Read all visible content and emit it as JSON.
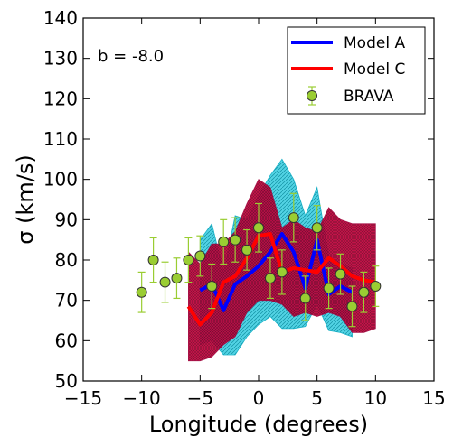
{
  "chart_data": {
    "type": "line",
    "xlabel": "Longitude (degrees)",
    "ylabel": "σ (km/s)",
    "annotation": "b = -8.0",
    "xlim": [
      -15,
      15
    ],
    "ylim": [
      50,
      140
    ],
    "xticks": [
      "−15",
      "−10",
      "−5",
      "0",
      "5",
      "10",
      "15"
    ],
    "xtick_values": [
      -15,
      -10,
      -5,
      0,
      5,
      10,
      15
    ],
    "yticks": [
      "50",
      "60",
      "70",
      "80",
      "90",
      "100",
      "110",
      "120",
      "130",
      "140"
    ],
    "ytick_values": [
      50,
      60,
      70,
      80,
      90,
      100,
      110,
      120,
      130,
      140
    ],
    "legend_position": "top-right",
    "series": [
      {
        "name": "Model A",
        "kind": "line",
        "color": "#0000ff",
        "band_color": "#00bfd8",
        "x": [
          -5,
          -4,
          -3,
          -2,
          -1,
          0,
          1,
          2,
          3,
          4,
          5,
          6,
          7,
          8
        ],
        "y": [
          72.5,
          74,
          67.5,
          74,
          76,
          78.5,
          82,
          86.5,
          82,
          73,
          85,
          71.5,
          73.5,
          72
        ],
        "lower": [
          59,
          60,
          56.5,
          56.5,
          61,
          64,
          66,
          63,
          63,
          63.5,
          69,
          62.5,
          62,
          61
        ],
        "upper": [
          85,
          89,
          77,
          91,
          90,
          96,
          101,
          105,
          100,
          91,
          98,
          81,
          79,
          78
        ]
      },
      {
        "name": "Model C",
        "kind": "line",
        "color": "#ff0000",
        "band_color": "#b0003a",
        "x": [
          -6,
          -5,
          -4,
          -3,
          -2,
          -1,
          0,
          1,
          2,
          3,
          4,
          5,
          6,
          7,
          8,
          9,
          10
        ],
        "y": [
          68.5,
          64,
          67,
          74.5,
          76,
          80.5,
          86,
          86.5,
          77,
          78,
          77.5,
          77,
          80.5,
          78.5,
          76,
          75,
          74.5
        ],
        "lower": [
          55,
          55,
          56,
          59,
          61,
          67,
          70,
          70,
          69,
          66,
          67,
          66,
          67,
          66,
          62,
          62,
          63
        ],
        "upper": [
          82,
          79,
          84,
          84,
          87,
          94,
          100,
          98,
          88,
          90,
          88,
          87,
          93,
          90,
          89,
          89,
          89
        ]
      },
      {
        "name": "BRAVA",
        "kind": "points",
        "color": "#9acd32",
        "x": [
          -10,
          -9,
          -8,
          -7,
          -6,
          -5,
          -4,
          -3,
          -2,
          -1,
          0,
          1,
          2,
          3,
          4,
          5,
          6,
          7,
          8,
          9,
          10
        ],
        "y": [
          72,
          80,
          74.5,
          75.5,
          80,
          81,
          73.5,
          84.5,
          85,
          82.5,
          88,
          75.5,
          77,
          90.5,
          70.5,
          88,
          73,
          76.5,
          68.5,
          72,
          73.5
        ],
        "err": [
          5,
          5.5,
          5,
          5,
          5.5,
          5,
          5.5,
          5.5,
          5.5,
          5,
          6,
          5,
          5.5,
          6,
          5.5,
          5.5,
          5,
          5,
          5,
          5,
          5
        ]
      }
    ]
  }
}
